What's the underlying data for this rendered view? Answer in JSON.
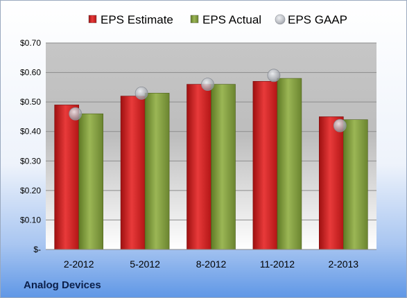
{
  "chart_data": {
    "type": "bar",
    "categories": [
      "2-2012",
      "5-2012",
      "8-2012",
      "11-2012",
      "2-2013"
    ],
    "series": [
      {
        "name": "EPS Estimate",
        "kind": "bar",
        "color": "#cc1f1f",
        "values": [
          0.49,
          0.52,
          0.56,
          0.57,
          0.45
        ]
      },
      {
        "name": "EPS Actual",
        "kind": "bar",
        "color": "#7f9a3a",
        "values": [
          0.46,
          0.53,
          0.56,
          0.58,
          0.44
        ]
      },
      {
        "name": "EPS GAAP",
        "kind": "marker",
        "color": "#b8bcc4",
        "values": [
          0.46,
          0.53,
          0.56,
          0.59,
          0.42
        ]
      }
    ],
    "ylim": [
      0,
      0.7
    ],
    "yticks": [
      0,
      0.1,
      0.2,
      0.3,
      0.4,
      0.5,
      0.6,
      0.7
    ],
    "ytick_labels": [
      "$-",
      "$0.10",
      "$0.20",
      "$0.30",
      "$0.40",
      "$0.50",
      "$0.60",
      "$0.70"
    ],
    "grid": true,
    "legend_position": "top"
  },
  "footer": {
    "company": "Analog Devices"
  },
  "colors": {
    "background_top": "#ffffff",
    "background_bottom": "#5f97e6"
  }
}
